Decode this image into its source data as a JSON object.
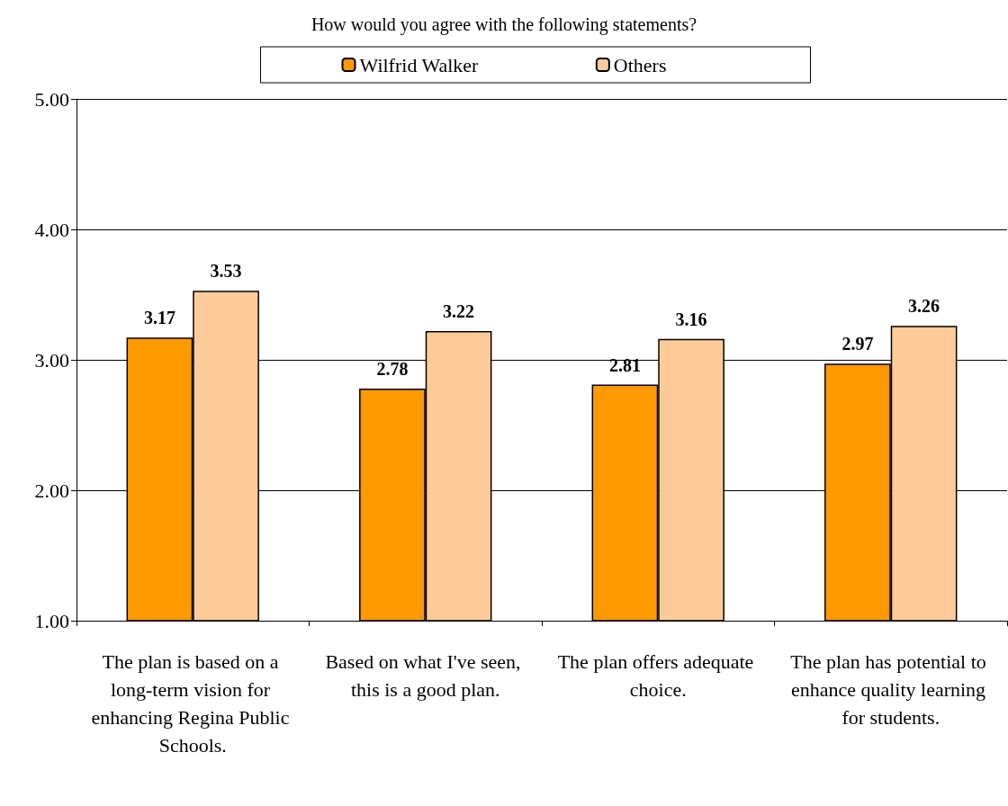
{
  "chart_data": {
    "type": "bar",
    "title": "How would you agree with the following statements?",
    "categories": [
      "The plan is based on a long-term vision for enhancing Regina Public Schools.",
      "Based on what I've seen, this is a good plan.",
      "The plan offers adequate choice.",
      "The plan has potential to enhance quality learning for students."
    ],
    "series": [
      {
        "name": "Wilfrid Walker",
        "color": "#ff9900",
        "values": [
          3.17,
          2.78,
          2.81,
          2.97
        ]
      },
      {
        "name": "Others",
        "color": "#ffcc99",
        "values": [
          3.53,
          3.22,
          3.16,
          3.26
        ]
      }
    ],
    "ylim": [
      1,
      5
    ],
    "yticks": [
      {
        "value": 1,
        "label": "1.00"
      },
      {
        "value": 2,
        "label": "2.00"
      },
      {
        "value": 3,
        "label": "3.00"
      },
      {
        "value": 4,
        "label": "4.00"
      },
      {
        "value": 5,
        "label": "5.00"
      }
    ],
    "grid": "y",
    "legend": "top",
    "data_labels": true
  }
}
